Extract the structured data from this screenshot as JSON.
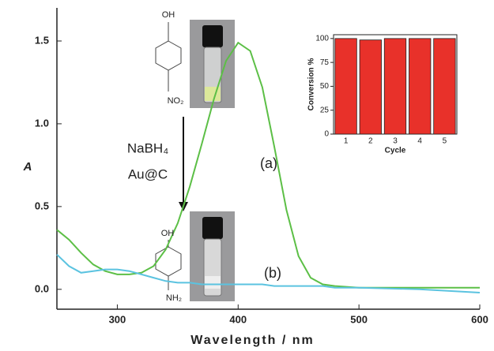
{
  "chart_data": [
    {
      "type": "line",
      "xlabel": "Wavelength / nm",
      "ylabel": "A",
      "x": [
        250,
        260,
        270,
        280,
        290,
        300,
        310,
        320,
        330,
        340,
        350,
        360,
        370,
        380,
        390,
        400,
        410,
        420,
        430,
        440,
        450,
        460,
        470,
        480,
        500,
        550,
        600
      ],
      "series": [
        {
          "name": "(a)",
          "color": "#5cbf46",
          "values": [
            0.36,
            0.3,
            0.22,
            0.15,
            0.11,
            0.09,
            0.09,
            0.1,
            0.14,
            0.24,
            0.4,
            0.62,
            0.88,
            1.15,
            1.38,
            1.49,
            1.44,
            1.22,
            0.86,
            0.48,
            0.2,
            0.07,
            0.03,
            0.02,
            0.01,
            0.01,
            0.01
          ]
        },
        {
          "name": "(b)",
          "color": "#5bc3e0",
          "values": [
            0.21,
            0.14,
            0.1,
            0.11,
            0.12,
            0.12,
            0.11,
            0.09,
            0.07,
            0.05,
            0.04,
            0.04,
            0.03,
            0.03,
            0.03,
            0.03,
            0.03,
            0.03,
            0.02,
            0.02,
            0.02,
            0.02,
            0.02,
            0.01,
            0.01,
            0.0,
            -0.02
          ]
        }
      ],
      "xlim": [
        250,
        600
      ],
      "xticks": [
        300,
        400,
        500,
        600
      ],
      "ylim": [
        -0.12,
        1.7
      ],
      "yticks": [
        {
          "value": 0,
          "label": "0.0"
        },
        0.5,
        {
          "value": 1,
          "label": "1.0"
        },
        1.5
      ],
      "annotations": [
        "NaBH₄",
        "Au@C",
        "OH",
        "NO₂",
        "OH",
        "NH₂"
      ]
    },
    {
      "type": "bar",
      "xlabel": "Cycle",
      "ylabel": "Conversion %",
      "categories": [
        "1",
        "2",
        "3",
        "4",
        "5"
      ],
      "values": [
        100,
        98.5,
        100,
        100,
        100
      ],
      "color": "#e8312a",
      "ylim": [
        0,
        104
      ],
      "yticks": [
        0,
        25,
        50,
        75,
        100
      ]
    }
  ]
}
